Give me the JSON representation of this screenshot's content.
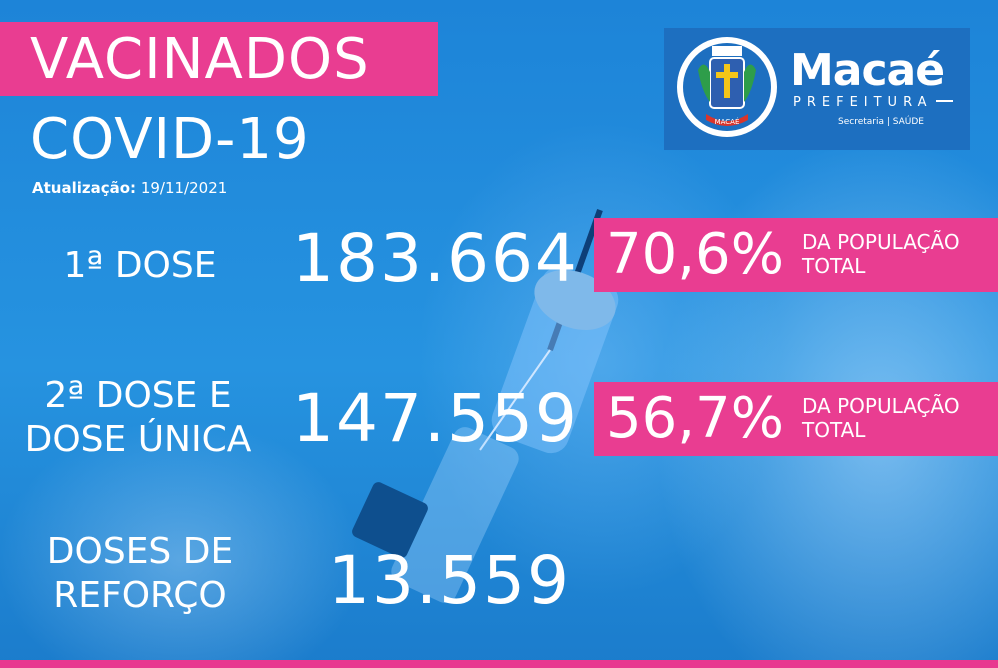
{
  "title": "VACINADOS",
  "subtitle": "COVID-19",
  "updated": {
    "label": "Atualização:",
    "date": "19/11/2021"
  },
  "logo": {
    "name": "Macaé",
    "sub": "PREFEITURA",
    "secretaria": "Secretaria | SAÚDE",
    "crest_text": "MACAÉ"
  },
  "rows": [
    {
      "label_line1": "1ª DOSE",
      "value": "183.664",
      "pct": "70,6%",
      "note_line1": "DA POPULAÇÃO",
      "note_line2": "TOTAL"
    },
    {
      "label_line1": "2ª DOSE E",
      "label_line2": "DOSE ÚNICA",
      "value": "147.559",
      "pct": "56,7%",
      "note_line1": "DA POPULAÇÃO",
      "note_line2": "TOTAL"
    },
    {
      "label_line1": "DOSES DE",
      "label_line2": "REFORÇO",
      "value": "13.559"
    }
  ],
  "colors": {
    "accent": "#e93d91",
    "background": "#1f86d6",
    "logo_bg": "#1d6fc0"
  }
}
